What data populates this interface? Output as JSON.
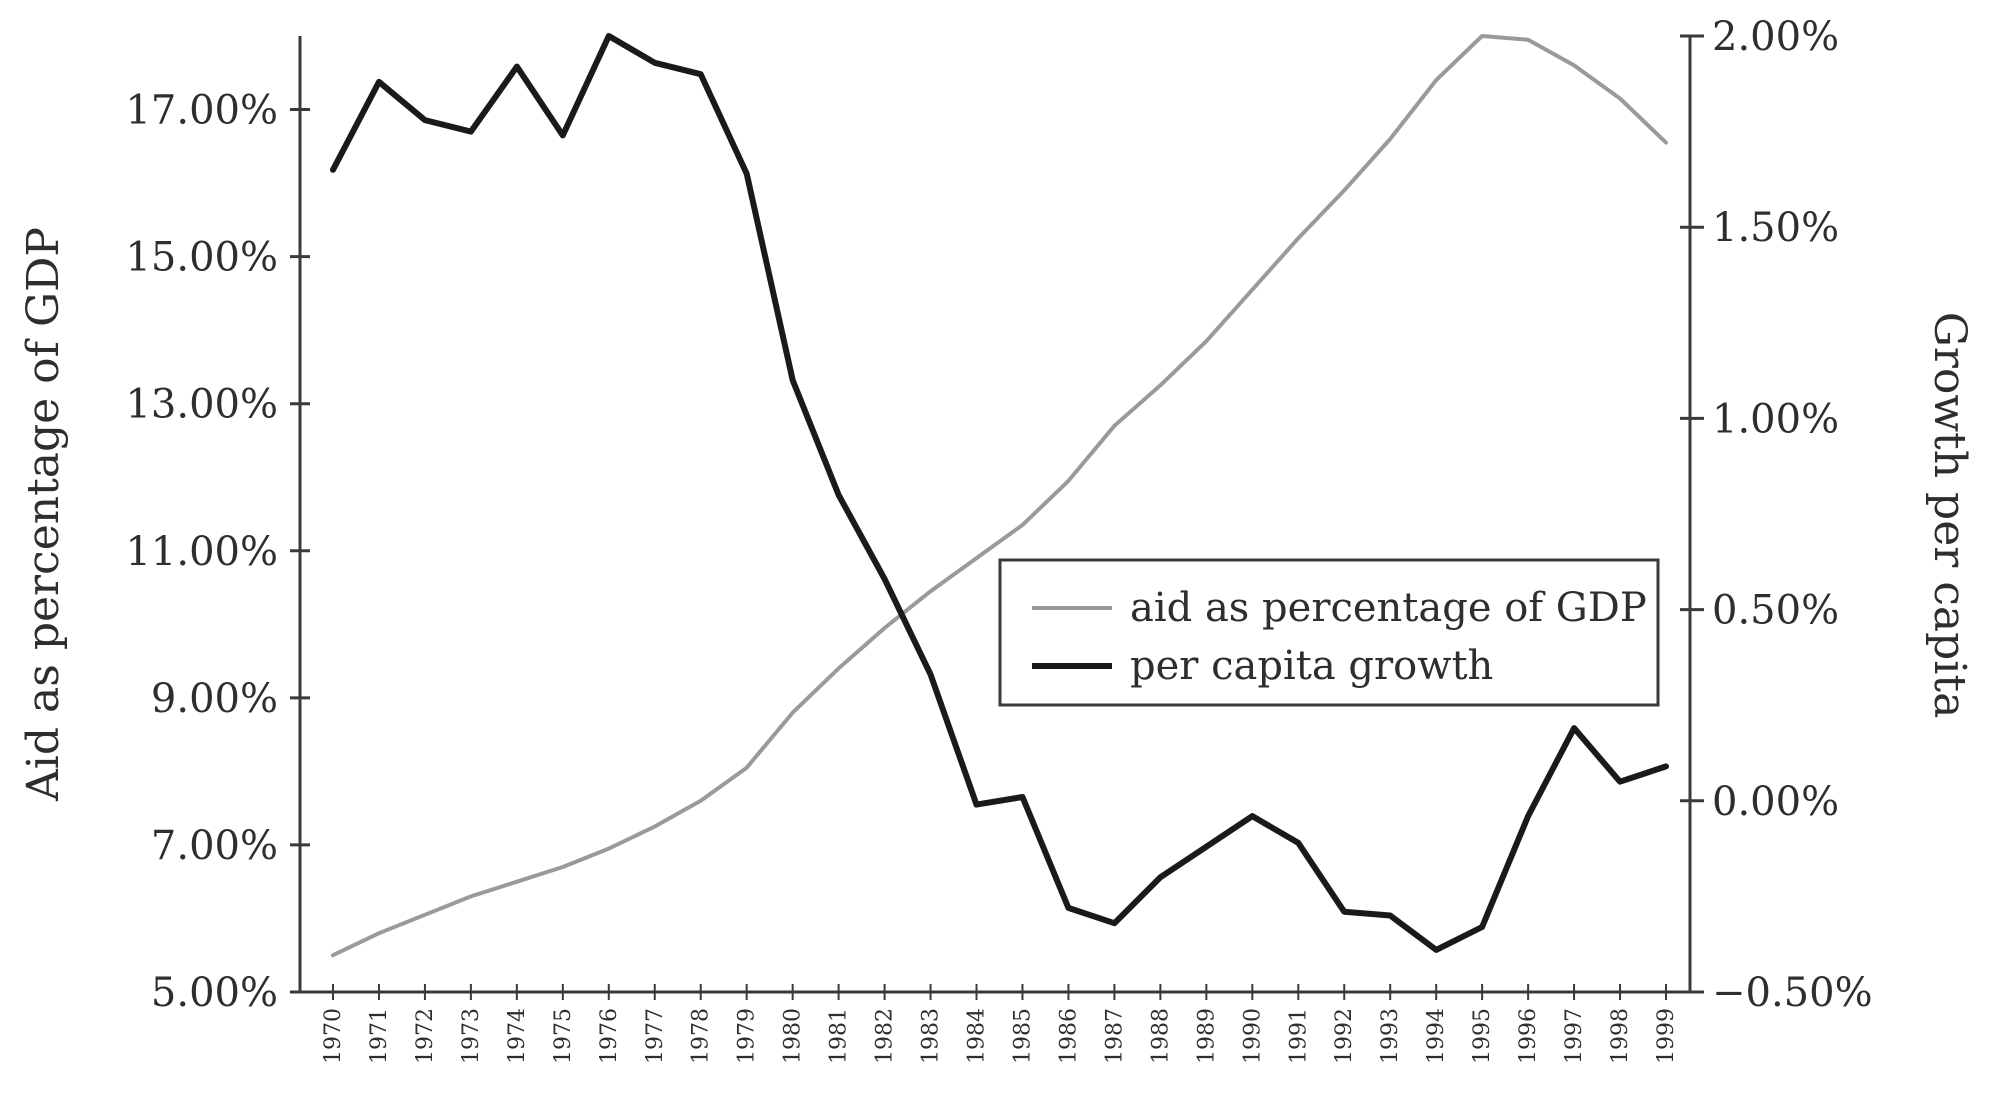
{
  "chart_data": {
    "type": "line",
    "x": [
      1970,
      1971,
      1972,
      1973,
      1974,
      1975,
      1976,
      1977,
      1978,
      1979,
      1980,
      1981,
      1982,
      1983,
      1984,
      1985,
      1986,
      1987,
      1988,
      1989,
      1990,
      1991,
      1992,
      1993,
      1994,
      1995,
      1996,
      1997,
      1998,
      1999
    ],
    "x_tick_labels": [
      "1970",
      "1971",
      "1972",
      "1973",
      "1974",
      "1975",
      "1976",
      "1977",
      "1978",
      "1979",
      "1980",
      "1981",
      "1982",
      "1983",
      "1984",
      "1985",
      "1986",
      "1987",
      "1988",
      "1989",
      "1990",
      "1991",
      "1992",
      "1993",
      "1994",
      "1995",
      "1996",
      "1997",
      "1998",
      "1999"
    ],
    "series": [
      {
        "name": "aid as percentage of GDP",
        "axis": "left",
        "color": "#9a9a9a",
        "values": [
          5.5,
          5.8,
          6.05,
          6.3,
          6.5,
          6.7,
          6.95,
          7.25,
          7.6,
          8.05,
          8.8,
          9.4,
          9.95,
          10.45,
          10.9,
          11.35,
          11.95,
          12.7,
          13.25,
          13.85,
          14.55,
          15.25,
          15.9,
          16.6,
          17.4,
          18.0,
          17.95,
          17.6,
          17.15,
          16.55
        ]
      },
      {
        "name": "per capita growth",
        "axis": "right",
        "color": "#1a1a1a",
        "values": [
          1.65,
          1.88,
          1.78,
          1.75,
          1.92,
          1.74,
          2.0,
          1.93,
          1.9,
          1.64,
          1.1,
          0.8,
          0.58,
          0.33,
          -0.01,
          0.01,
          -0.28,
          -0.32,
          -0.2,
          -0.12,
          -0.04,
          -0.11,
          -0.29,
          -0.3,
          -0.39,
          -0.33,
          -0.04,
          0.19,
          0.05,
          0.09
        ]
      }
    ],
    "y_left": {
      "label": "Aid as percentage of GDP",
      "min": 5.0,
      "max": 18.0,
      "ticks": [
        5,
        7,
        9,
        11,
        13,
        15,
        17
      ],
      "tick_labels": [
        "5.00%",
        "7.00%",
        "9.00%",
        "11.00%",
        "13.00%",
        "15.00%",
        "17.00%"
      ]
    },
    "y_right": {
      "label": "Growth per capita",
      "min": -0.5,
      "max": 2.0,
      "ticks": [
        -0.5,
        0,
        0.5,
        1.0,
        1.5,
        2.0
      ],
      "tick_labels": [
        "−0.50%",
        "0.00%",
        "0.50%",
        "1.00%",
        "1.50%",
        "2.00%"
      ]
    },
    "legend": {
      "position": "center-right",
      "items": [
        "aid as percentage of GDP",
        "per capita growth"
      ]
    },
    "grid": false,
    "title": ""
  }
}
